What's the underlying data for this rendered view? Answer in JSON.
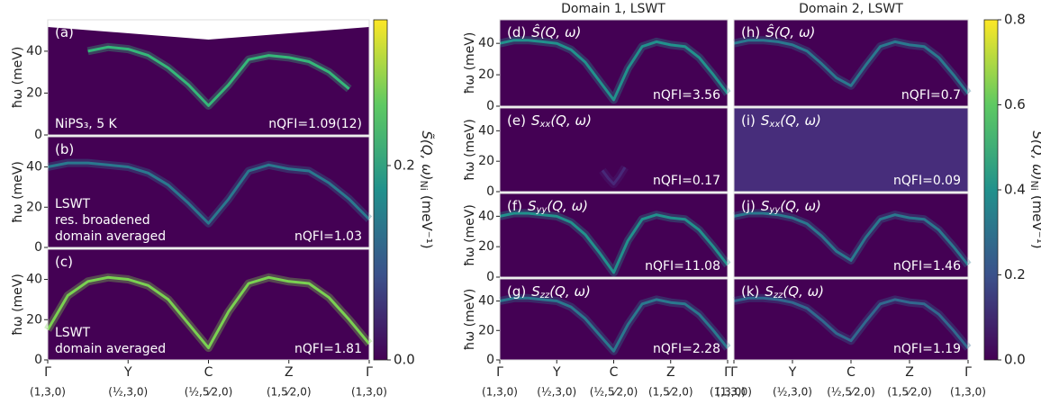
{
  "figure": {
    "column_titles": [
      "Domain 1, LSWT",
      "Domain 2, LSWT"
    ]
  },
  "chart_data": [
    {
      "type": "line",
      "label": "(a)",
      "notes": [
        "NiPS₃, 5 K"
      ],
      "nqfi": "nQFI=1.09(12)",
      "ylabel": "ħω (meV)",
      "background": "#440154",
      "ylim": [
        0,
        55
      ],
      "yticks": [
        0,
        20,
        40
      ],
      "xlim": [
        0,
        4
      ],
      "x": [
        0,
        0.25,
        0.5,
        0.75,
        1,
        1.25,
        1.5,
        1.75,
        2,
        2.25,
        2.5,
        2.75,
        3,
        3.25,
        3.5,
        3.75,
        4
      ],
      "series": [
        {
          "color": "#35b779",
          "values": [
            null,
            null,
            40,
            42,
            41,
            38,
            32,
            24,
            14,
            24,
            36,
            38,
            37,
            35,
            30,
            22,
            null
          ]
        }
      ]
    },
    {
      "type": "line",
      "label": "(b)",
      "notes": [
        "LSWT",
        "res. broadened",
        "domain averaged"
      ],
      "nqfi": "nQFI=1.03",
      "ylabel": "ħω (meV)",
      "background": "#440154",
      "ylim": [
        0,
        55
      ],
      "yticks": [
        0,
        20,
        40
      ],
      "xlim": [
        0,
        4
      ],
      "x": [
        0,
        0.25,
        0.5,
        0.75,
        1,
        1.25,
        1.5,
        1.75,
        2,
        2.25,
        2.5,
        2.75,
        3,
        3.25,
        3.5,
        3.75,
        4
      ],
      "series": [
        {
          "color": "#2a788e",
          "values": [
            40,
            42,
            42,
            41,
            40,
            37,
            31,
            22,
            12,
            24,
            38,
            41,
            39,
            38,
            32,
            24,
            14
          ]
        }
      ]
    },
    {
      "type": "line",
      "label": "(c)",
      "notes": [
        "LSWT",
        "domain averaged"
      ],
      "nqfi": "nQFI=1.81",
      "ylabel": "ħω (meV)",
      "background": "#440154",
      "ylim": [
        0,
        55
      ],
      "yticks": [
        0,
        20,
        40
      ],
      "xlim": [
        0,
        4
      ],
      "x": [
        0,
        0.25,
        0.5,
        0.75,
        1,
        1.25,
        1.5,
        1.75,
        2,
        2.25,
        2.5,
        2.75,
        3,
        3.25,
        3.5,
        3.75,
        4
      ],
      "series": [
        {
          "color": "#7ad151",
          "values": [
            15,
            32,
            39,
            41,
            40,
            37,
            30,
            18,
            6,
            24,
            38,
            41,
            39,
            38,
            31,
            20,
            8
          ]
        }
      ],
      "xticks": [
        {
          "value": 0,
          "label": "Γ"
        },
        {
          "value": 1,
          "label": "Y"
        },
        {
          "value": 2,
          "label": "C"
        },
        {
          "value": 3,
          "label": "Z"
        },
        {
          "value": 4,
          "label": "Γ"
        }
      ],
      "xtick_sublabels": [
        "(1,3,0)",
        "(½,3,0)",
        "(½,5⁄2,0)",
        "(1,5⁄2,0)",
        "(1,3,0)"
      ]
    },
    {
      "type": "line",
      "label": "(d)",
      "quantity": "Ŝ",
      "quantity_args": "(Q, ω)",
      "nqfi": "nQFI=3.56",
      "ylabel": "ħω (meV)",
      "background": "#440154",
      "ylim": [
        0,
        55
      ],
      "yticks": [
        0,
        20,
        40
      ],
      "xlim": [
        0,
        4
      ],
      "x": [
        0,
        0.25,
        0.5,
        0.75,
        1,
        1.25,
        1.5,
        1.75,
        2,
        2.25,
        2.5,
        2.75,
        3,
        3.25,
        3.5,
        3.75,
        4
      ],
      "series": [
        {
          "color": "#21918c",
          "values": [
            40,
            42,
            42,
            41,
            40,
            36,
            28,
            16,
            4,
            24,
            38,
            41,
            39,
            38,
            31,
            20,
            8
          ]
        }
      ]
    },
    {
      "type": "line",
      "label": "(e)",
      "quantity": "S",
      "quantity_sub": "xx",
      "quantity_args": "(Q, ω)",
      "nqfi": "nQFI=0.17",
      "ylabel": "ħω (meV)",
      "background": "#440154",
      "ylim": [
        0,
        55
      ],
      "yticks": [
        0,
        20,
        40
      ],
      "xlim": [
        0,
        4
      ],
      "x": [
        1.8,
        1.9,
        2,
        2.1,
        2.2
      ],
      "series": [
        {
          "color": "#482878",
          "values": [
            14,
            9,
            5,
            10,
            16
          ]
        }
      ]
    },
    {
      "type": "line",
      "label": "(f)",
      "quantity": "S",
      "quantity_sub": "yy",
      "quantity_args": "(Q, ω)",
      "nqfi": "nQFI=11.08",
      "ylabel": "ħω (meV)",
      "background": "#440154",
      "ylim": [
        0,
        55
      ],
      "yticks": [
        0,
        20,
        40
      ],
      "xlim": [
        0,
        4
      ],
      "x": [
        0,
        0.25,
        0.5,
        0.75,
        1,
        1.25,
        1.5,
        1.75,
        2,
        2.25,
        2.5,
        2.75,
        3,
        3.25,
        3.5,
        3.75,
        4
      ],
      "series": [
        {
          "color": "#21918c",
          "values": [
            40,
            42,
            42,
            41,
            40,
            36,
            28,
            16,
            3,
            24,
            38,
            41,
            39,
            38,
            31,
            20,
            8
          ]
        }
      ]
    },
    {
      "type": "line",
      "label": "(g)",
      "quantity": "S",
      "quantity_sub": "zz",
      "quantity_args": "(Q, ω)",
      "nqfi": "nQFI=2.28",
      "ylabel": "ħω (meV)",
      "background": "#440154",
      "ylim": [
        0,
        55
      ],
      "yticks": [
        0,
        20,
        40
      ],
      "xlim": [
        0,
        4
      ],
      "x": [
        0,
        0.25,
        0.5,
        0.75,
        1,
        1.25,
        1.5,
        1.75,
        2,
        2.25,
        2.5,
        2.75,
        3,
        3.25,
        3.5,
        3.75,
        4
      ],
      "series": [
        {
          "color": "#2a788e",
          "values": [
            40,
            42,
            42,
            41,
            40,
            36,
            28,
            17,
            6,
            24,
            38,
            41,
            39,
            38,
            31,
            20,
            8
          ]
        }
      ],
      "xticks": [
        {
          "value": 0,
          "label": "Γ"
        },
        {
          "value": 1,
          "label": "Y"
        },
        {
          "value": 2,
          "label": "C"
        },
        {
          "value": 3,
          "label": "Z"
        },
        {
          "value": 4,
          "label": "Γ"
        }
      ],
      "xtick_sublabels": [
        "(1,3,0)",
        "(½,3,0)",
        "(½,5⁄2,0)",
        "(1,5⁄2,0)",
        "(1,3,0)"
      ]
    },
    {
      "type": "line",
      "label": "(h)",
      "quantity": "Ŝ",
      "quantity_args": "(Q, ω)",
      "nqfi": "nQFI=0.7",
      "background": "#440154",
      "ylim": [
        0,
        55
      ],
      "xlim": [
        0,
        4
      ],
      "x": [
        0,
        0.25,
        0.5,
        0.75,
        1,
        1.25,
        1.5,
        1.75,
        2,
        2.25,
        2.5,
        2.75,
        3,
        3.25,
        3.5,
        3.75,
        4
      ],
      "series": [
        {
          "color": "#2a788e",
          "values": [
            40,
            42,
            42,
            41,
            39,
            35,
            27,
            18,
            13,
            26,
            38,
            41,
            39,
            38,
            31,
            20,
            8
          ]
        }
      ]
    },
    {
      "type": "line",
      "label": "(i)",
      "quantity": "S",
      "quantity_sub": "xx",
      "quantity_args": "(Q, ω)",
      "nqfi": "nQFI=0.09",
      "background": "#472d7b",
      "ylim": [
        0,
        55
      ],
      "xlim": [
        0,
        4
      ]
    },
    {
      "type": "line",
      "label": "(j)",
      "quantity": "S",
      "quantity_sub": "yy",
      "quantity_args": "(Q, ω)",
      "nqfi": "nQFI=1.46",
      "background": "#440154",
      "ylim": [
        0,
        55
      ],
      "xlim": [
        0,
        4
      ],
      "x": [
        0,
        0.25,
        0.5,
        0.75,
        1,
        1.25,
        1.5,
        1.75,
        2,
        2.25,
        2.5,
        2.75,
        3,
        3.25,
        3.5,
        3.75,
        4
      ],
      "series": [
        {
          "color": "#2a788e",
          "values": [
            40,
            42,
            42,
            41,
            39,
            35,
            27,
            17,
            11,
            26,
            38,
            41,
            39,
            38,
            31,
            20,
            8
          ]
        }
      ]
    },
    {
      "type": "line",
      "label": "(k)",
      "quantity": "S",
      "quantity_sub": "zz",
      "quantity_args": "(Q, ω)",
      "nqfi": "nQFI=1.19",
      "background": "#440154",
      "ylim": [
        0,
        55
      ],
      "xlim": [
        0,
        4
      ],
      "x": [
        0,
        0.25,
        0.5,
        0.75,
        1,
        1.25,
        1.5,
        1.75,
        2,
        2.25,
        2.5,
        2.75,
        3,
        3.25,
        3.5,
        3.75,
        4
      ],
      "series": [
        {
          "color": "#31688e",
          "values": [
            40,
            42,
            42,
            41,
            39,
            35,
            27,
            18,
            13,
            26,
            38,
            41,
            39,
            38,
            31,
            20,
            8
          ]
        }
      ],
      "xticks": [
        {
          "value": 0,
          "label": "Γ"
        },
        {
          "value": 1,
          "label": "Y"
        },
        {
          "value": 2,
          "label": "C"
        },
        {
          "value": 3,
          "label": "Z"
        },
        {
          "value": 4,
          "label": "Γ"
        }
      ],
      "xtick_sublabels": [
        "(1,3,0)",
        "(½,3,0)",
        "(½,5⁄2,0)",
        "(1,5⁄2,0)",
        "(1,3,0)"
      ]
    },
    {
      "type": "colorbar",
      "label": "S̃(Q, ω)",
      "label_sub": "Ni",
      "label_unit": "(meV⁻¹)",
      "ylim": [
        0,
        0.35
      ],
      "yticks": [
        {
          "value": 0,
          "label": "0.0"
        },
        {
          "value": 0.2,
          "label": "0.2"
        }
      ]
    },
    {
      "type": "colorbar",
      "label": "S(Q, ω)",
      "label_sub": "Ni",
      "label_unit": "(meV⁻¹)",
      "ylim": [
        0,
        0.8
      ],
      "yticks": [
        {
          "value": 0,
          "label": "0.0"
        },
        {
          "value": 0.2,
          "label": "0.2"
        },
        {
          "value": 0.4,
          "label": "0.4"
        },
        {
          "value": 0.6,
          "label": "0.6"
        },
        {
          "value": 0.8,
          "label": "0.8"
        }
      ]
    }
  ]
}
